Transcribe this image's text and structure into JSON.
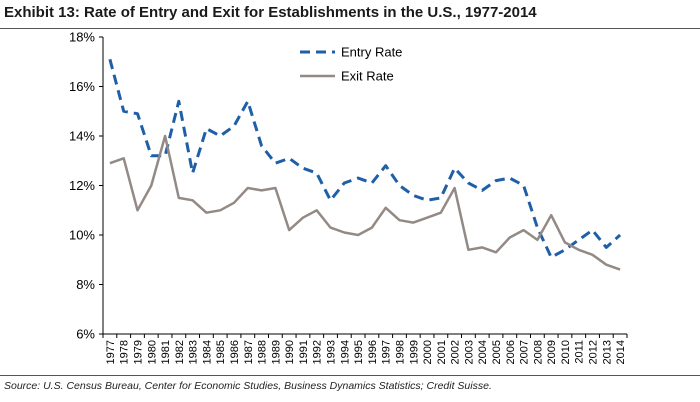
{
  "chart_data": {
    "type": "line",
    "title": "Exhibit 13: Rate of Entry and Exit for Establishments in the U.S., 1977-2014",
    "source": "Source: U.S. Census Bureau, Center for Economic Studies, Business Dynamics Statistics; Credit Suisse.",
    "xlabel": "",
    "ylabel": "",
    "ylim": [
      6,
      18
    ],
    "yticks": [
      6,
      8,
      10,
      12,
      14,
      16,
      18
    ],
    "ytick_labels": [
      "6%",
      "8%",
      "10%",
      "12%",
      "14%",
      "16%",
      "18%"
    ],
    "categories": [
      "1977",
      "1978",
      "1979",
      "1980",
      "1981",
      "1982",
      "1983",
      "1984",
      "1985",
      "1986",
      "1987",
      "1988",
      "1989",
      "1990",
      "1991",
      "1992",
      "1993",
      "1994",
      "1995",
      "1996",
      "1997",
      "1998",
      "1999",
      "2000",
      "2001",
      "2002",
      "2003",
      "2004",
      "2005",
      "2006",
      "2007",
      "2008",
      "2009",
      "2010",
      "2011",
      "2012",
      "2013",
      "2014"
    ],
    "legend_position": "top-center",
    "series": [
      {
        "name": "Entry Rate",
        "style": "dashed",
        "color": "#1f5fa8",
        "values": [
          17.1,
          15.0,
          14.9,
          13.2,
          13.2,
          15.4,
          12.5,
          14.3,
          14.0,
          14.4,
          15.4,
          13.6,
          12.9,
          13.1,
          12.7,
          12.5,
          11.4,
          12.1,
          12.3,
          12.1,
          12.8,
          12.0,
          11.6,
          11.4,
          11.5,
          12.7,
          12.1,
          11.8,
          12.2,
          12.3,
          12.0,
          10.3,
          9.1,
          9.4,
          9.8,
          10.2,
          9.5,
          10.0
        ]
      },
      {
        "name": "Exit Rate",
        "style": "solid",
        "color": "#948a85",
        "values": [
          12.9,
          13.1,
          11.0,
          12.0,
          14.0,
          11.5,
          11.4,
          10.9,
          11.0,
          11.3,
          11.9,
          11.8,
          11.9,
          10.2,
          10.7,
          11.0,
          10.3,
          10.1,
          10.0,
          10.3,
          11.1,
          10.6,
          10.5,
          10.7,
          10.9,
          11.9,
          9.4,
          9.5,
          9.3,
          9.9,
          10.2,
          9.8,
          10.8,
          9.7,
          9.4,
          9.2,
          8.8,
          8.6
        ]
      }
    ]
  }
}
